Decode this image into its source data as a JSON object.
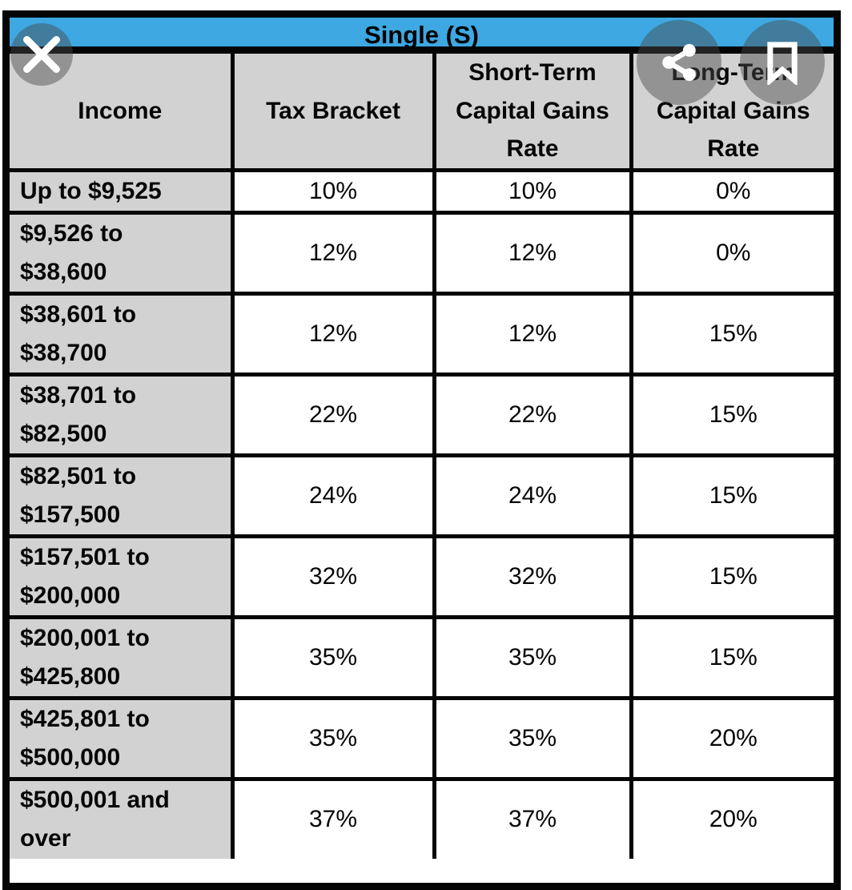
{
  "viewer": {
    "close_button": {
      "icon": "close-icon"
    },
    "share_button": {
      "icon": "share-icon"
    },
    "bookmark_button": {
      "icon": "bookmark-icon"
    }
  },
  "table": {
    "title": "Single (S)",
    "columns": [
      "Income",
      "Tax Bracket",
      "Short-Term Capital Gains Rate",
      "Long-Term Capital Gains Rate"
    ],
    "rows": [
      {
        "income": "Up to $9,525",
        "tax_bracket": "10%",
        "short_term": "10%",
        "long_term": "0%"
      },
      {
        "income": "$9,526 to\n$38,600",
        "tax_bracket": "12%",
        "short_term": "12%",
        "long_term": "0%"
      },
      {
        "income": "$38,601 to\n$38,700",
        "tax_bracket": "12%",
        "short_term": "12%",
        "long_term": "15%"
      },
      {
        "income": "$38,701 to\n$82,500",
        "tax_bracket": "22%",
        "short_term": "22%",
        "long_term": "15%"
      },
      {
        "income": "$82,501 to\n$157,500",
        "tax_bracket": "24%",
        "short_term": "24%",
        "long_term": "15%"
      },
      {
        "income": "$157,501 to\n$200,000",
        "tax_bracket": "32%",
        "short_term": "32%",
        "long_term": "15%"
      },
      {
        "income": "$200,001 to\n$425,800",
        "tax_bracket": "35%",
        "short_term": "35%",
        "long_term": "15%"
      },
      {
        "income": "$425,801 to\n$500,000",
        "tax_bracket": "35%",
        "short_term": "35%",
        "long_term": "20%"
      },
      {
        "income": "$500,001 and\nover",
        "tax_bracket": "37%",
        "short_term": "37%",
        "long_term": "20%"
      }
    ]
  },
  "colors": {
    "header_blue": "#3DA8E2",
    "cell_grey": "#D2D2D2",
    "border_black": "#050505",
    "overlay_circle": "rgba(72,72,72,0.45)"
  }
}
